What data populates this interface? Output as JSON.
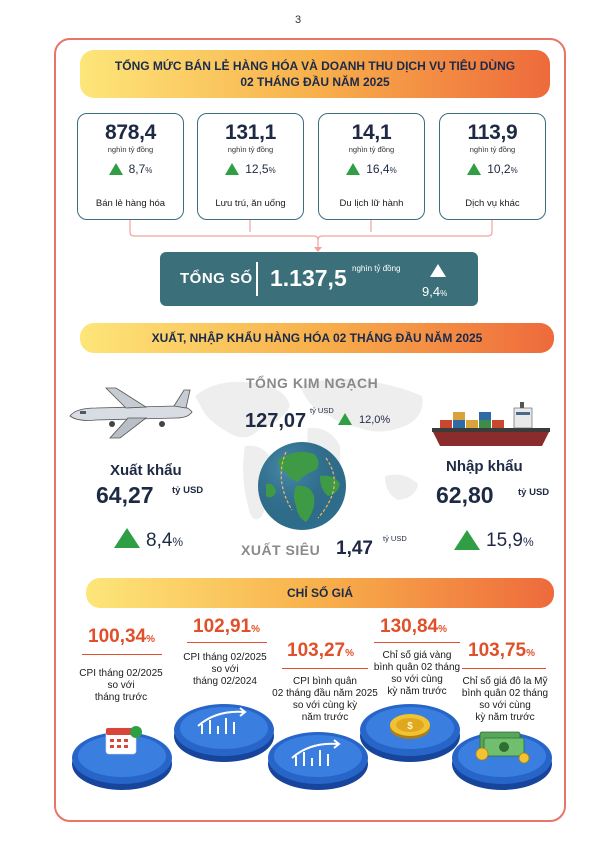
{
  "page_number": "3",
  "retail": {
    "title_line1": "TỔNG MỨC BÁN LẺ HÀNG HÓA VÀ DOANH THU DỊCH VỤ TIÊU DÙNG",
    "title_line2": "02 THÁNG ĐẦU NĂM 2025",
    "cards": [
      {
        "value": "878,4",
        "unit": "nghìn tỷ đồng",
        "growth": "8,7",
        "pct": "%",
        "label": "Bán lẻ hàng hóa"
      },
      {
        "value": "131,1",
        "unit": "nghìn tỷ đồng",
        "growth": "12,5",
        "pct": "%",
        "label": "Lưu trú, ăn uống"
      },
      {
        "value": "14,1",
        "unit": "nghìn tỷ đồng",
        "growth": "16,4",
        "pct": "%",
        "label": "Du lịch lữ hành"
      },
      {
        "value": "113,9",
        "unit": "nghìn tỷ đồng",
        "growth": "10,2",
        "pct": "%",
        "label": "Dịch vụ khác"
      }
    ],
    "total": {
      "label": "TỔNG SỐ",
      "value": "1.137,5",
      "unit": "nghìn tỷ đồng",
      "growth": "9,4",
      "pct": "%"
    }
  },
  "trade": {
    "title": "XUẤT, NHẬP KHẨU HÀNG HÓA 02 THÁNG ĐẦU NĂM 2025",
    "turnover": {
      "label": "TỔNG KIM NGẠCH",
      "value": "127,07",
      "unit": "tỷ USD",
      "growth": "12,0",
      "pct": "%"
    },
    "export": {
      "label": "Xuất khẩu",
      "value": "64,27",
      "unit": "tỷ USD",
      "growth": "8,4",
      "pct": "%"
    },
    "import": {
      "label": "Nhập khẩu",
      "value": "62,80",
      "unit": "tỷ USD",
      "growth": "15,9",
      "pct": "%"
    },
    "surplus": {
      "label": "XUẤT SIÊU",
      "value": "1,47",
      "unit": "tỷ USD"
    }
  },
  "prices": {
    "title": "CHỈ SỐ GIÁ",
    "items": [
      {
        "value": "100,34",
        "pct": "%",
        "desc1": "CPI tháng 02/2025",
        "desc2": "so với",
        "desc3": "tháng trước",
        "desc4": "",
        "icon": "calendar-icon"
      },
      {
        "value": "102,91",
        "pct": "%",
        "desc1": "CPI tháng 02/2025",
        "desc2": "so với",
        "desc3": "tháng 02/2024",
        "desc4": "",
        "icon": "chart-up-icon"
      },
      {
        "value": "103,27",
        "pct": "%",
        "desc1": "CPI bình quân",
        "desc2": "02 tháng đầu năm 2025",
        "desc3": "so với cùng kỳ",
        "desc4": "năm trước",
        "icon": "chart-up-icon"
      },
      {
        "value": "130,84",
        "pct": "%",
        "desc1": "Chỉ số giá vàng",
        "desc2": "bình quân 02 tháng",
        "desc3": "so với cùng",
        "desc4": "kỳ năm trước",
        "icon": "gold-coin-icon"
      },
      {
        "value": "103,75",
        "pct": "%",
        "desc1": "Chỉ số giá đô la Mỹ",
        "desc2": "bình quân 02 tháng",
        "desc3": "so với cùng",
        "desc4": "kỳ năm trước",
        "icon": "dollar-bills-icon"
      }
    ]
  },
  "colors": {
    "teal": "#3b6f79",
    "green": "#2f9e44",
    "orange": "#e0502a",
    "frame": "#e8746a"
  }
}
